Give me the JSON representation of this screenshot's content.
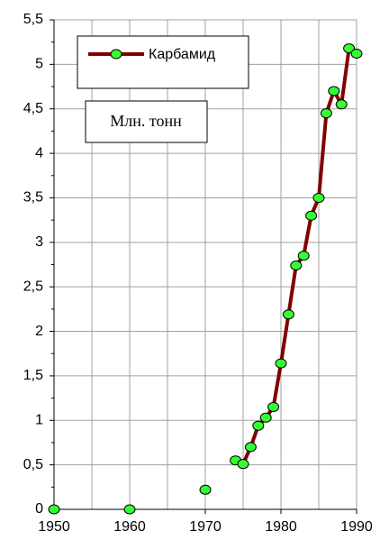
{
  "chart_data": {
    "type": "line",
    "legend": "Карбамид",
    "annotation": "Млн. тонн",
    "x": [
      1950,
      1960,
      1970,
      1974,
      1975,
      1976,
      1977,
      1978,
      1979,
      1980,
      1981,
      1982,
      1983,
      1984,
      1985,
      1986,
      1987,
      1988,
      1989,
      1990
    ],
    "series": [
      {
        "name": "Карбамид",
        "color": "#800000",
        "marker_color": "#33ff33",
        "values": [
          0,
          0,
          0.22,
          0.55,
          0.51,
          0.7,
          0.94,
          1.03,
          1.15,
          1.64,
          2.19,
          2.74,
          2.85,
          3.3,
          3.5,
          4.45,
          4.7,
          4.55,
          5.18,
          5.12
        ]
      }
    ],
    "xlim": [
      1950,
      1990
    ],
    "xticks": [
      1950,
      1960,
      1970,
      1980,
      1990
    ],
    "ylim": [
      0,
      5.5
    ],
    "yticks": [
      0,
      {
        "value": 0.5,
        "label": "0,5"
      },
      1,
      {
        "value": 1.5,
        "label": "1,5"
      },
      2,
      {
        "value": 2.5,
        "label": "2,5"
      },
      3,
      {
        "value": 3.5,
        "label": "3,5"
      },
      4,
      {
        "value": 4.5,
        "label": "4,5"
      },
      5,
      {
        "value": 5.5,
        "label": "5,5"
      }
    ],
    "grid": true
  }
}
